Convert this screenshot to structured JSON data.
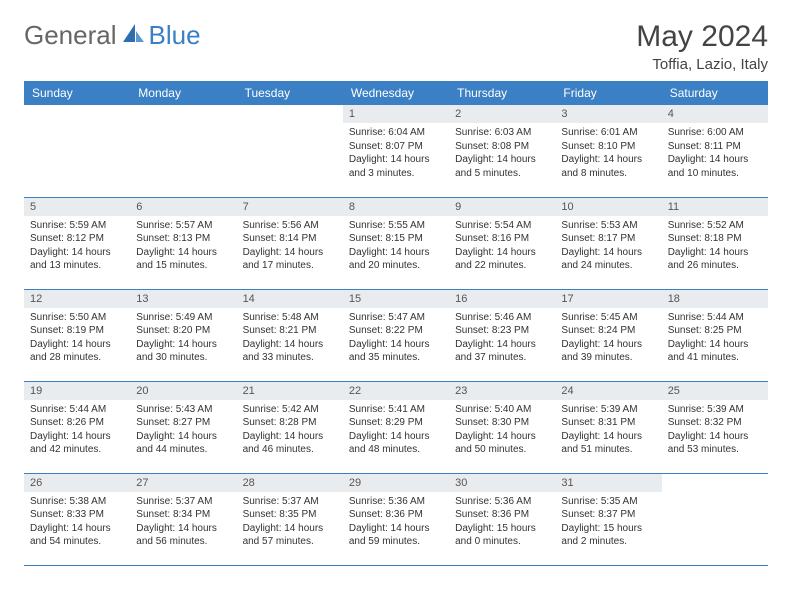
{
  "logo": {
    "part1": "General",
    "part2": "Blue"
  },
  "title": "May 2024",
  "location": "Toffia, Lazio, Italy",
  "colors": {
    "header_bg": "#3b7fc4",
    "daynum_bg": "#e9ecef"
  },
  "weekdays": [
    "Sunday",
    "Monday",
    "Tuesday",
    "Wednesday",
    "Thursday",
    "Friday",
    "Saturday"
  ],
  "weeks": [
    [
      null,
      null,
      null,
      {
        "n": "1",
        "sr": "6:04 AM",
        "ss": "8:07 PM",
        "dl": "14 hours and 3 minutes."
      },
      {
        "n": "2",
        "sr": "6:03 AM",
        "ss": "8:08 PM",
        "dl": "14 hours and 5 minutes."
      },
      {
        "n": "3",
        "sr": "6:01 AM",
        "ss": "8:10 PM",
        "dl": "14 hours and 8 minutes."
      },
      {
        "n": "4",
        "sr": "6:00 AM",
        "ss": "8:11 PM",
        "dl": "14 hours and 10 minutes."
      }
    ],
    [
      {
        "n": "5",
        "sr": "5:59 AM",
        "ss": "8:12 PM",
        "dl": "14 hours and 13 minutes."
      },
      {
        "n": "6",
        "sr": "5:57 AM",
        "ss": "8:13 PM",
        "dl": "14 hours and 15 minutes."
      },
      {
        "n": "7",
        "sr": "5:56 AM",
        "ss": "8:14 PM",
        "dl": "14 hours and 17 minutes."
      },
      {
        "n": "8",
        "sr": "5:55 AM",
        "ss": "8:15 PM",
        "dl": "14 hours and 20 minutes."
      },
      {
        "n": "9",
        "sr": "5:54 AM",
        "ss": "8:16 PM",
        "dl": "14 hours and 22 minutes."
      },
      {
        "n": "10",
        "sr": "5:53 AM",
        "ss": "8:17 PM",
        "dl": "14 hours and 24 minutes."
      },
      {
        "n": "11",
        "sr": "5:52 AM",
        "ss": "8:18 PM",
        "dl": "14 hours and 26 minutes."
      }
    ],
    [
      {
        "n": "12",
        "sr": "5:50 AM",
        "ss": "8:19 PM",
        "dl": "14 hours and 28 minutes."
      },
      {
        "n": "13",
        "sr": "5:49 AM",
        "ss": "8:20 PM",
        "dl": "14 hours and 30 minutes."
      },
      {
        "n": "14",
        "sr": "5:48 AM",
        "ss": "8:21 PM",
        "dl": "14 hours and 33 minutes."
      },
      {
        "n": "15",
        "sr": "5:47 AM",
        "ss": "8:22 PM",
        "dl": "14 hours and 35 minutes."
      },
      {
        "n": "16",
        "sr": "5:46 AM",
        "ss": "8:23 PM",
        "dl": "14 hours and 37 minutes."
      },
      {
        "n": "17",
        "sr": "5:45 AM",
        "ss": "8:24 PM",
        "dl": "14 hours and 39 minutes."
      },
      {
        "n": "18",
        "sr": "5:44 AM",
        "ss": "8:25 PM",
        "dl": "14 hours and 41 minutes."
      }
    ],
    [
      {
        "n": "19",
        "sr": "5:44 AM",
        "ss": "8:26 PM",
        "dl": "14 hours and 42 minutes."
      },
      {
        "n": "20",
        "sr": "5:43 AM",
        "ss": "8:27 PM",
        "dl": "14 hours and 44 minutes."
      },
      {
        "n": "21",
        "sr": "5:42 AM",
        "ss": "8:28 PM",
        "dl": "14 hours and 46 minutes."
      },
      {
        "n": "22",
        "sr": "5:41 AM",
        "ss": "8:29 PM",
        "dl": "14 hours and 48 minutes."
      },
      {
        "n": "23",
        "sr": "5:40 AM",
        "ss": "8:30 PM",
        "dl": "14 hours and 50 minutes."
      },
      {
        "n": "24",
        "sr": "5:39 AM",
        "ss": "8:31 PM",
        "dl": "14 hours and 51 minutes."
      },
      {
        "n": "25",
        "sr": "5:39 AM",
        "ss": "8:32 PM",
        "dl": "14 hours and 53 minutes."
      }
    ],
    [
      {
        "n": "26",
        "sr": "5:38 AM",
        "ss": "8:33 PM",
        "dl": "14 hours and 54 minutes."
      },
      {
        "n": "27",
        "sr": "5:37 AM",
        "ss": "8:34 PM",
        "dl": "14 hours and 56 minutes."
      },
      {
        "n": "28",
        "sr": "5:37 AM",
        "ss": "8:35 PM",
        "dl": "14 hours and 57 minutes."
      },
      {
        "n": "29",
        "sr": "5:36 AM",
        "ss": "8:36 PM",
        "dl": "14 hours and 59 minutes."
      },
      {
        "n": "30",
        "sr": "5:36 AM",
        "ss": "8:36 PM",
        "dl": "15 hours and 0 minutes."
      },
      {
        "n": "31",
        "sr": "5:35 AM",
        "ss": "8:37 PM",
        "dl": "15 hours and 2 minutes."
      },
      null
    ]
  ],
  "labels": {
    "sunrise": "Sunrise: ",
    "sunset": "Sunset: ",
    "daylight": "Daylight: "
  }
}
